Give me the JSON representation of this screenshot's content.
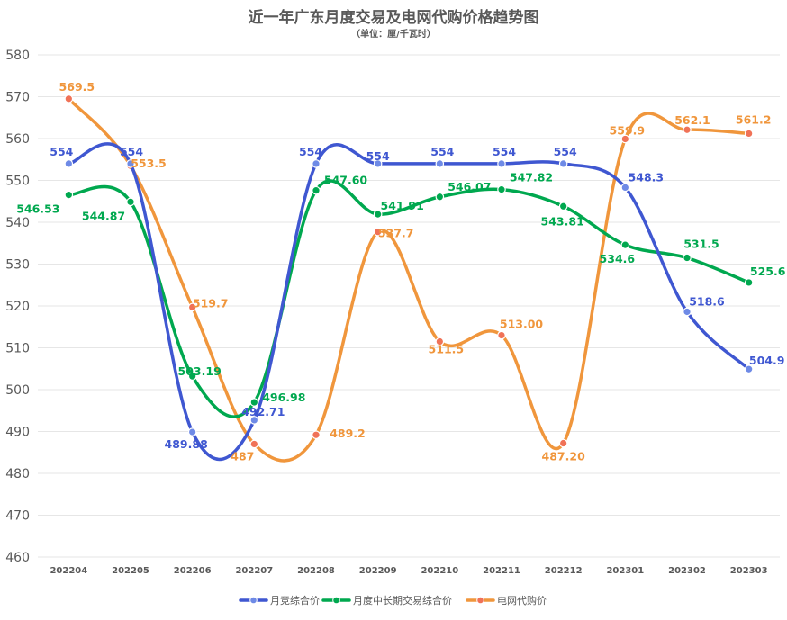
{
  "chart_data": {
    "type": "line",
    "title": "近一年广东月度交易及电网代购价格趋势图",
    "subtitle": "（单位：厘/千瓦时）",
    "x": [
      "202204",
      "202205",
      "202206",
      "202207",
      "202208",
      "202209",
      "202210",
      "202211",
      "202212",
      "202301",
      "202302",
      "202303"
    ],
    "ylim": [
      460,
      580
    ],
    "yticks": [
      460,
      470,
      480,
      490,
      500,
      510,
      520,
      530,
      540,
      550,
      560,
      570,
      580
    ],
    "grid": true,
    "legend_position": "bottom",
    "series": [
      {
        "name": "月竞综合价",
        "color": "#3f57d1",
        "values": [
          554,
          554,
          489.88,
          492.71,
          554,
          554,
          554,
          554,
          554,
          548.3,
          518.6,
          504.9
        ],
        "labels": [
          "554",
          "554",
          "489.88",
          "492.71",
          "554",
          "554",
          "554",
          "554",
          "554",
          "548.3",
          "518.6",
          "504.9"
        ]
      },
      {
        "name": "月度中长期交易综合价",
        "color": "#00a84f",
        "values": [
          546.53,
          544.87,
          503.19,
          496.98,
          547.6,
          541.91,
          546.07,
          547.82,
          543.81,
          534.6,
          531.5,
          525.6
        ],
        "labels": [
          "546.53",
          "544.87",
          "503.19",
          "496.98",
          "547.60",
          "541.91",
          "546.07",
          "547.82",
          "543.81",
          "534.6",
          "531.5",
          "525.6"
        ]
      },
      {
        "name": "电网代购价",
        "color": "#f0963c",
        "values": [
          569.5,
          553.5,
          519.7,
          487,
          489.2,
          537.7,
          511.5,
          513.0,
          487.2,
          559.9,
          562.1,
          561.2
        ],
        "labels": [
          "569.5",
          "553.5",
          "519.7",
          "487",
          "489.2",
          "537.7",
          "511.5",
          "513.00",
          "487.20",
          "559.9",
          "562.1",
          "561.2"
        ]
      }
    ]
  }
}
